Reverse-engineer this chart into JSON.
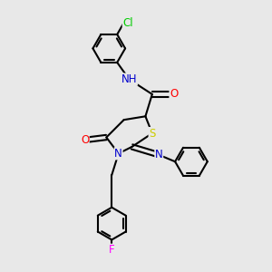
{
  "bg_color": "#e8e8e8",
  "line_color": "#000000",
  "bond_width": 1.5,
  "atom_colors": {
    "N": "#0000cc",
    "O": "#ff0000",
    "S": "#cccc00",
    "Cl": "#00cc00",
    "F": "#ff00ff",
    "H": "#888888",
    "C": "#000000"
  },
  "font_size": 8.5,
  "title": ""
}
